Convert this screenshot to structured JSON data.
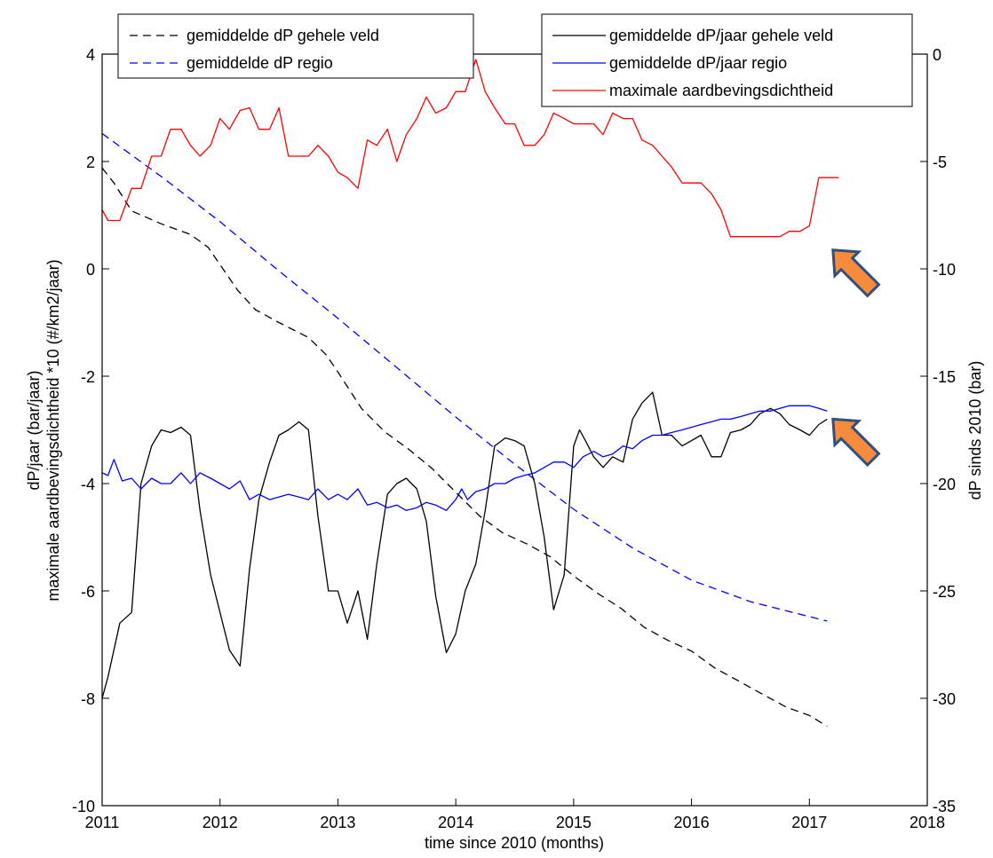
{
  "chart_data": {
    "type": "line",
    "xlabel": "time since 2010 (months)",
    "x_axis": {
      "min": 2011,
      "max": 2018,
      "ticks": [
        2011,
        2012,
        2013,
        2014,
        2015,
        2016,
        2017,
        2018
      ]
    },
    "left_axis": {
      "label_line1": "dP/jaar (bar/jaar)",
      "label_line2": "maximale aardbevingsdichtheid *10 (#/km2/jaar)",
      "min": -10,
      "max": 4,
      "ticks": [
        -10,
        -8,
        -6,
        -4,
        -2,
        0,
        2,
        4
      ]
    },
    "right_axis": {
      "label": "dP sinds 2010 (bar)",
      "min": -35,
      "max": 0,
      "ticks": [
        -35,
        -30,
        -25,
        -20,
        -15,
        -10,
        -5,
        0
      ]
    },
    "grid": false,
    "legends": [
      {
        "placement": "top-left",
        "entries": [
          "gemiddelde dP gehele veld",
          "gemiddelde dP regio"
        ]
      },
      {
        "placement": "top-right",
        "entries": [
          "gemiddelde dP/jaar gehele veld",
          "gemiddelde dP/jaar regio",
          "maximale aardbevingsdichtheid"
        ]
      }
    ],
    "series": [
      {
        "name": "gemiddelde dP gehele veld",
        "axis": "right",
        "color": "#000000",
        "dash": "dashed",
        "x": [
          2011.0,
          2011.1,
          2011.25,
          2011.5,
          2011.75,
          2011.9,
          2012.0,
          2012.15,
          2012.3,
          2012.5,
          2012.75,
          2012.9,
          2013.0,
          2013.2,
          2013.4,
          2013.6,
          2013.8,
          2014.0,
          2014.2,
          2014.4,
          2014.6,
          2014.8,
          2015.0,
          2015.2,
          2015.4,
          2015.6,
          2015.8,
          2016.0,
          2016.2,
          2016.4,
          2016.6,
          2016.8,
          2017.0,
          2017.15
        ],
        "y": [
          -5.3,
          -6.0,
          -7.3,
          -7.9,
          -8.4,
          -9.0,
          -9.8,
          -11.0,
          -11.9,
          -12.5,
          -13.2,
          -14.0,
          -14.8,
          -16.5,
          -17.6,
          -18.4,
          -19.3,
          -20.4,
          -21.5,
          -22.3,
          -22.8,
          -23.4,
          -24.3,
          -25.1,
          -25.8,
          -26.7,
          -27.3,
          -27.8,
          -28.6,
          -29.2,
          -29.8,
          -30.4,
          -30.8,
          -31.3
        ]
      },
      {
        "name": "gemiddelde dP regio",
        "axis": "right",
        "color": "#0000ff",
        "dash": "dashed",
        "x": [
          2011.0,
          2011.5,
          2012.0,
          2012.5,
          2013.0,
          2013.5,
          2014.0,
          2014.5,
          2015.0,
          2015.5,
          2016.0,
          2016.5,
          2017.0,
          2017.15
        ],
        "y": [
          -3.7,
          -5.7,
          -7.8,
          -10.1,
          -12.3,
          -14.6,
          -16.9,
          -19.1,
          -21.2,
          -23.0,
          -24.5,
          -25.5,
          -26.2,
          -26.4
        ]
      },
      {
        "name": "gemiddelde dP/jaar gehele veld",
        "axis": "left",
        "color": "#000000",
        "dash": "solid",
        "x": [
          2011.0,
          2011.05,
          2011.15,
          2011.25,
          2011.33,
          2011.42,
          2011.5,
          2011.58,
          2011.67,
          2011.75,
          2011.83,
          2011.92,
          2012.0,
          2012.08,
          2012.17,
          2012.25,
          2012.33,
          2012.42,
          2012.5,
          2012.58,
          2012.67,
          2012.75,
          2012.83,
          2012.92,
          2013.0,
          2013.08,
          2013.17,
          2013.25,
          2013.33,
          2013.42,
          2013.5,
          2013.58,
          2013.67,
          2013.75,
          2013.83,
          2013.92,
          2014.0,
          2014.08,
          2014.17,
          2014.25,
          2014.33,
          2014.42,
          2014.5,
          2014.58,
          2014.67,
          2014.75,
          2014.83,
          2014.92,
          2015.0,
          2015.05,
          2015.1,
          2015.17,
          2015.25,
          2015.33,
          2015.42,
          2015.5,
          2015.58,
          2015.67,
          2015.75,
          2015.83,
          2015.92,
          2016.0,
          2016.08,
          2016.17,
          2016.25,
          2016.33,
          2016.42,
          2016.5,
          2016.58,
          2016.67,
          2016.75,
          2016.83,
          2016.92,
          2017.0,
          2017.08,
          2017.15
        ],
        "y": [
          -8.0,
          -7.6,
          -6.6,
          -6.4,
          -4.0,
          -3.3,
          -3.0,
          -3.05,
          -2.95,
          -3.1,
          -4.5,
          -5.7,
          -6.4,
          -7.1,
          -7.4,
          -5.6,
          -4.3,
          -3.6,
          -3.1,
          -3.0,
          -2.85,
          -3.0,
          -4.6,
          -6.0,
          -6.0,
          -6.6,
          -6.0,
          -6.9,
          -5.5,
          -4.2,
          -4.0,
          -3.9,
          -4.1,
          -4.7,
          -6.1,
          -7.15,
          -6.8,
          -6.0,
          -5.5,
          -4.5,
          -3.3,
          -3.15,
          -3.2,
          -3.3,
          -4.0,
          -5.0,
          -6.35,
          -5.7,
          -3.3,
          -3.0,
          -3.2,
          -3.5,
          -3.7,
          -3.5,
          -3.6,
          -2.8,
          -2.5,
          -2.3,
          -3.1,
          -3.1,
          -3.3,
          -3.2,
          -3.1,
          -3.5,
          -3.5,
          -3.05,
          -3.0,
          -2.9,
          -2.7,
          -2.6,
          -2.7,
          -2.9,
          -3.0,
          -3.1,
          -2.9,
          -2.8
        ]
      },
      {
        "name": "gemiddelde dP/jaar regio",
        "axis": "left",
        "color": "#0000ff",
        "dash": "solid",
        "x": [
          2011.0,
          2011.05,
          2011.1,
          2011.17,
          2011.25,
          2011.33,
          2011.42,
          2011.5,
          2011.58,
          2011.67,
          2011.75,
          2011.83,
          2011.92,
          2012.0,
          2012.08,
          2012.17,
          2012.25,
          2012.33,
          2012.42,
          2012.5,
          2012.58,
          2012.67,
          2012.75,
          2012.83,
          2012.92,
          2013.0,
          2013.08,
          2013.17,
          2013.25,
          2013.33,
          2013.42,
          2013.5,
          2013.58,
          2013.67,
          2013.75,
          2013.83,
          2013.92,
          2014.0,
          2014.05,
          2014.1,
          2014.17,
          2014.25,
          2014.33,
          2014.42,
          2014.5,
          2014.58,
          2014.67,
          2014.75,
          2014.83,
          2014.92,
          2015.0,
          2015.08,
          2015.17,
          2015.25,
          2015.33,
          2015.42,
          2015.5,
          2015.58,
          2015.67,
          2015.75,
          2015.83,
          2015.92,
          2016.0,
          2016.08,
          2016.17,
          2016.25,
          2016.33,
          2016.42,
          2016.5,
          2016.58,
          2016.67,
          2016.75,
          2016.83,
          2016.92,
          2017.0,
          2017.08,
          2017.15
        ],
        "y": [
          -3.8,
          -3.85,
          -3.55,
          -3.95,
          -3.9,
          -4.1,
          -3.9,
          -4.0,
          -4.0,
          -3.8,
          -4.0,
          -3.8,
          -3.9,
          -4.0,
          -4.1,
          -3.95,
          -4.3,
          -4.2,
          -4.3,
          -4.25,
          -4.2,
          -4.25,
          -4.3,
          -4.1,
          -4.3,
          -4.2,
          -4.3,
          -4.1,
          -4.4,
          -4.35,
          -4.45,
          -4.4,
          -4.5,
          -4.45,
          -4.35,
          -4.4,
          -4.5,
          -4.3,
          -4.1,
          -4.3,
          -4.15,
          -4.1,
          -4.0,
          -4.0,
          -3.9,
          -3.85,
          -3.8,
          -3.7,
          -3.6,
          -3.6,
          -3.7,
          -3.5,
          -3.4,
          -3.5,
          -3.45,
          -3.3,
          -3.35,
          -3.2,
          -3.1,
          -3.1,
          -3.05,
          -3.0,
          -2.95,
          -2.9,
          -2.85,
          -2.8,
          -2.8,
          -2.75,
          -2.7,
          -2.65,
          -2.65,
          -2.6,
          -2.55,
          -2.55,
          -2.55,
          -2.6,
          -2.65
        ]
      },
      {
        "name": "maximale aardbevingsdichtheid",
        "axis": "left",
        "color": "#ff0000",
        "dash": "solid",
        "x": [
          2011.0,
          2011.05,
          2011.15,
          2011.25,
          2011.33,
          2011.42,
          2011.5,
          2011.58,
          2011.67,
          2011.75,
          2011.83,
          2011.92,
          2012.0,
          2012.08,
          2012.17,
          2012.25,
          2012.33,
          2012.42,
          2012.5,
          2012.58,
          2012.67,
          2012.75,
          2012.83,
          2012.92,
          2013.0,
          2013.08,
          2013.17,
          2013.25,
          2013.33,
          2013.42,
          2013.5,
          2013.58,
          2013.67,
          2013.75,
          2013.83,
          2013.92,
          2014.0,
          2014.08,
          2014.17,
          2014.25,
          2014.33,
          2014.42,
          2014.5,
          2014.58,
          2014.67,
          2014.75,
          2014.83,
          2014.92,
          2015.0,
          2015.08,
          2015.17,
          2015.25,
          2015.33,
          2015.42,
          2015.5,
          2015.58,
          2015.67,
          2015.75,
          2015.83,
          2015.92,
          2016.0,
          2016.08,
          2016.17,
          2016.25,
          2016.33,
          2016.42,
          2016.5,
          2016.58,
          2016.67,
          2016.75,
          2016.83,
          2016.92,
          2017.0,
          2017.08,
          2017.15,
          2017.25
        ],
        "y": [
          1.1,
          0.9,
          0.9,
          1.5,
          1.5,
          2.1,
          2.1,
          2.6,
          2.6,
          2.3,
          2.1,
          2.3,
          2.8,
          2.6,
          2.95,
          3.0,
          2.6,
          2.6,
          3.0,
          2.1,
          2.1,
          2.1,
          2.3,
          2.1,
          1.8,
          1.7,
          1.5,
          2.4,
          2.3,
          2.6,
          2.0,
          2.5,
          2.8,
          3.2,
          2.9,
          3.0,
          3.3,
          3.3,
          3.9,
          3.3,
          3.0,
          2.7,
          2.7,
          2.3,
          2.3,
          2.5,
          2.9,
          2.8,
          2.7,
          2.7,
          2.7,
          2.5,
          2.9,
          2.8,
          2.8,
          2.4,
          2.3,
          2.1,
          1.9,
          1.6,
          1.6,
          1.6,
          1.4,
          1.1,
          0.6,
          0.6,
          0.6,
          0.6,
          0.6,
          0.6,
          0.7,
          0.7,
          0.8,
          1.7,
          1.7,
          1.7
        ]
      }
    ],
    "annotations": [
      {
        "type": "arrow",
        "color": "#f68b3b",
        "edge_color": "#2f4f7f",
        "points_to": {
          "x": 2017.2,
          "y": 0.35
        }
      },
      {
        "type": "arrow",
        "color": "#f68b3b",
        "edge_color": "#2f4f7f",
        "points_to": {
          "x": 2017.2,
          "y": -2.8
        }
      }
    ]
  }
}
